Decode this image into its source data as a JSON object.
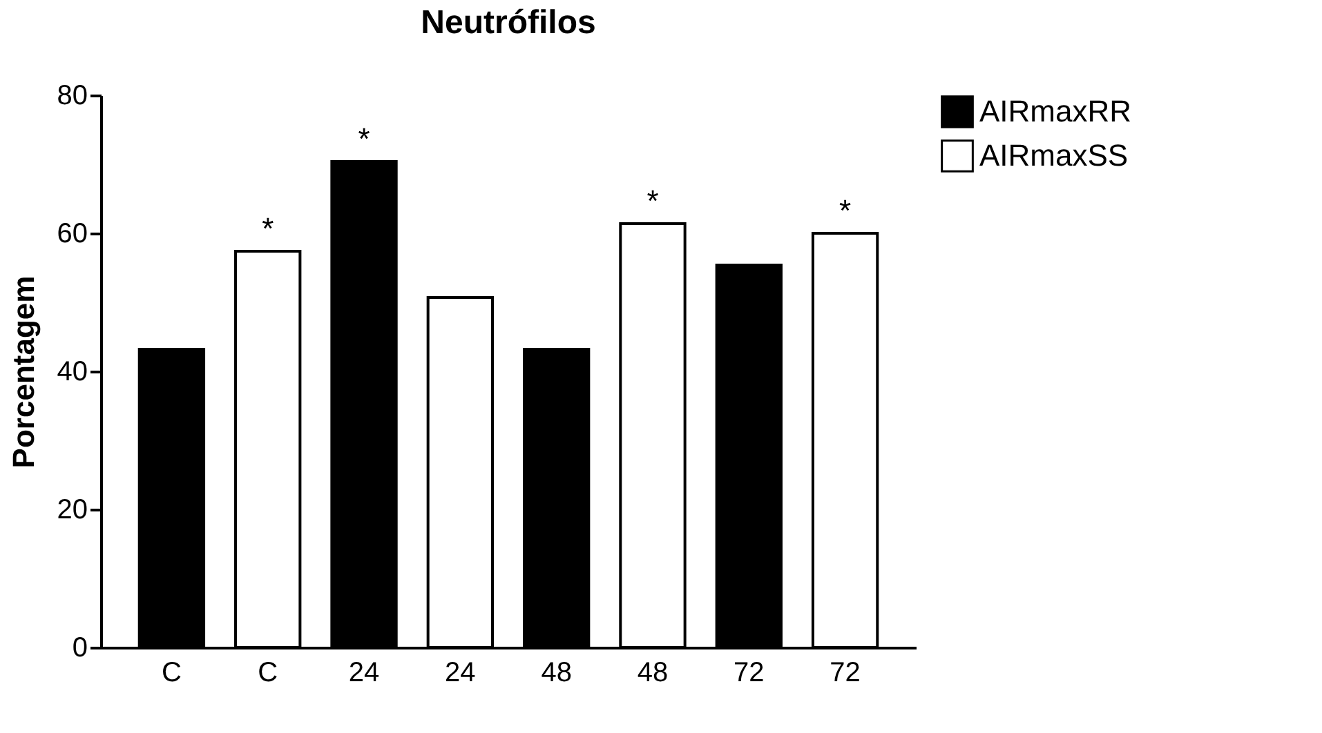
{
  "chart_data": {
    "type": "bar",
    "title": "Neutrófilos",
    "ylabel": "Porcentagem",
    "categories": [
      "C",
      "C",
      "24",
      "24",
      "48",
      "48",
      "72",
      "72"
    ],
    "series": [
      {
        "name": "AIRmaxRR",
        "color": "#000000",
        "values": [
          43.2,
          null,
          70.4,
          null,
          43.2,
          null,
          55.4,
          null
        ],
        "value_labels": [
          null,
          null,
          "*",
          null,
          null,
          null,
          null,
          null
        ]
      },
      {
        "name": "AIRmaxSS",
        "color": "#ffffff",
        "values": [
          null,
          57.4,
          null,
          50.7,
          null,
          61.4,
          null,
          60.0
        ],
        "value_labels": [
          null,
          "*",
          null,
          null,
          null,
          "*",
          null,
          "*"
        ]
      }
    ],
    "ylim": [
      0,
      80
    ],
    "yticks": [
      0,
      20,
      40,
      60,
      80
    ],
    "grid": false,
    "legend": "top right"
  }
}
